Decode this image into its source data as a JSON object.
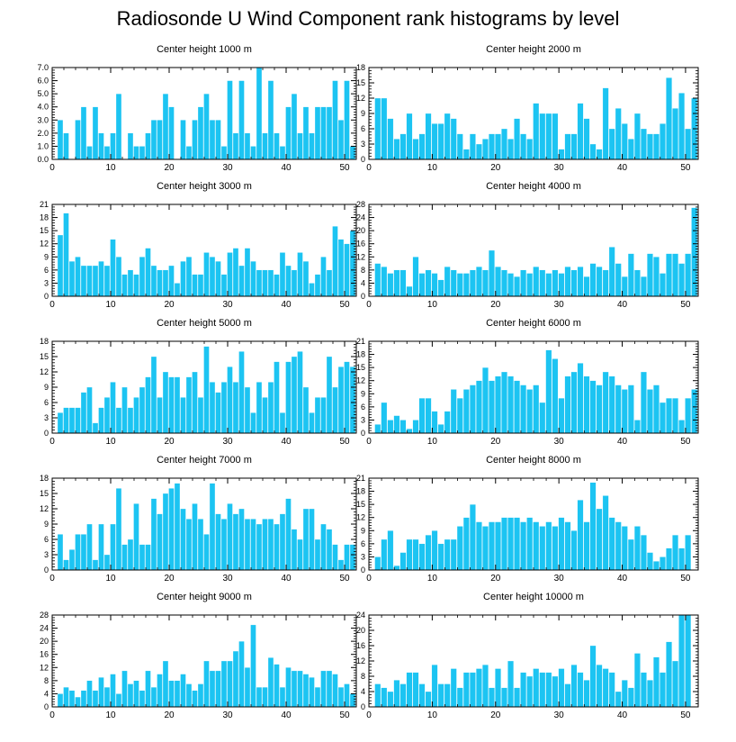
{
  "page_title": "Radiosonde U Wind Component rank histograms by level",
  "colors": {
    "bar": "#1cc4f2",
    "bar_stroke": "#ffffff",
    "axis": "#000000"
  },
  "chart_data": [
    {
      "type": "bar",
      "title": "Center height 1000 m",
      "xlim": [
        0,
        52
      ],
      "ylim": [
        0,
        7
      ],
      "xticks": [
        0,
        10,
        20,
        30,
        40,
        50
      ],
      "yticks": [
        "0.0",
        "1.0",
        "2.0",
        "3.0",
        "4.0",
        "5.0",
        "6.0",
        "7.0"
      ],
      "ytick_values": [
        0,
        1,
        2,
        3,
        4,
        5,
        6,
        7
      ],
      "values": [
        0,
        3,
        2,
        0,
        3,
        4,
        1,
        4,
        2,
        1,
        2,
        5,
        0,
        2,
        1,
        1,
        2,
        3,
        3,
        5,
        4,
        0,
        3,
        1,
        3,
        4,
        5,
        3,
        3,
        1,
        6,
        2,
        6,
        2,
        1,
        7,
        2,
        6,
        2,
        1,
        4,
        5,
        2,
        4,
        2,
        4,
        4,
        4,
        6,
        3,
        6,
        1
      ]
    },
    {
      "type": "bar",
      "title": "Center height 2000 m",
      "xlim": [
        0,
        52
      ],
      "ylim": [
        0,
        18
      ],
      "xticks": [
        0,
        10,
        20,
        30,
        40,
        50
      ],
      "yticks": [
        "0",
        "3",
        "6",
        "9",
        "12",
        "15",
        "18"
      ],
      "ytick_values": [
        0,
        3,
        6,
        9,
        12,
        15,
        18
      ],
      "values": [
        0,
        12,
        12,
        8,
        4,
        5,
        9,
        4,
        5,
        9,
        7,
        7,
        9,
        8,
        5,
        2,
        5,
        3,
        4,
        5,
        5,
        6,
        4,
        8,
        5,
        4,
        11,
        9,
        9,
        9,
        2,
        5,
        5,
        11,
        8,
        3,
        2,
        14,
        6,
        10,
        7,
        4,
        9,
        6,
        5,
        5,
        7,
        16,
        10,
        13,
        6,
        12
      ]
    },
    {
      "type": "bar",
      "title": "Center height 3000 m",
      "xlim": [
        0,
        52
      ],
      "ylim": [
        0,
        21
      ],
      "xticks": [
        0,
        10,
        20,
        30,
        40,
        50
      ],
      "yticks": [
        "0",
        "3",
        "6",
        "9",
        "12",
        "15",
        "18",
        "21"
      ],
      "ytick_values": [
        0,
        3,
        6,
        9,
        12,
        15,
        18,
        21
      ],
      "values": [
        0,
        14,
        19,
        8,
        9,
        7,
        7,
        7,
        8,
        7,
        13,
        9,
        5,
        6,
        5,
        9,
        11,
        7,
        6,
        6,
        7,
        3,
        8,
        9,
        5,
        5,
        10,
        9,
        8,
        5,
        10,
        11,
        7,
        11,
        8,
        6,
        6,
        6,
        5,
        10,
        7,
        6,
        10,
        8,
        3,
        5,
        9,
        6,
        16,
        13,
        12,
        15
      ]
    },
    {
      "type": "bar",
      "title": "Center height 4000 m",
      "xlim": [
        0,
        52
      ],
      "ylim": [
        0,
        28
      ],
      "xticks": [
        0,
        10,
        20,
        30,
        40,
        50
      ],
      "yticks": [
        "0",
        "4",
        "8",
        "12",
        "16",
        "20",
        "24",
        "28"
      ],
      "ytick_values": [
        0,
        4,
        8,
        12,
        16,
        20,
        24,
        28
      ],
      "values": [
        0,
        10,
        9,
        7,
        8,
        8,
        3,
        12,
        7,
        8,
        7,
        5,
        9,
        8,
        7,
        7,
        8,
        9,
        8,
        14,
        9,
        8,
        7,
        6,
        8,
        7,
        9,
        8,
        7,
        8,
        7,
        9,
        8,
        9,
        6,
        10,
        9,
        8,
        15,
        10,
        6,
        13,
        8,
        6,
        13,
        12,
        7,
        13,
        13,
        10,
        13,
        27
      ]
    },
    {
      "type": "bar",
      "title": "Center height 5000 m",
      "xlim": [
        0,
        52
      ],
      "ylim": [
        0,
        18
      ],
      "xticks": [
        0,
        10,
        20,
        30,
        40,
        50
      ],
      "yticks": [
        "0",
        "3",
        "6",
        "9",
        "12",
        "15",
        "18"
      ],
      "ytick_values": [
        0,
        3,
        6,
        9,
        12,
        15,
        18
      ],
      "values": [
        0,
        4,
        5,
        5,
        5,
        8,
        9,
        2,
        5,
        7,
        10,
        5,
        9,
        5,
        7,
        9,
        11,
        15,
        7,
        12,
        11,
        11,
        7,
        11,
        12,
        7,
        17,
        10,
        8,
        10,
        13,
        10,
        16,
        9,
        4,
        10,
        7,
        10,
        14,
        4,
        14,
        15,
        16,
        9,
        4,
        7,
        7,
        15,
        9,
        13,
        14,
        13
      ]
    },
    {
      "type": "bar",
      "title": "Center height 6000 m",
      "xlim": [
        0,
        52
      ],
      "ylim": [
        0,
        21
      ],
      "xticks": [
        0,
        10,
        20,
        30,
        40,
        50
      ],
      "yticks": [
        "0",
        "3",
        "6",
        "9",
        "12",
        "15",
        "18",
        "21"
      ],
      "ytick_values": [
        0,
        3,
        6,
        9,
        12,
        15,
        18,
        21
      ],
      "values": [
        0,
        2,
        7,
        3,
        4,
        3,
        1,
        3,
        8,
        8,
        5,
        2,
        5,
        10,
        8,
        10,
        11,
        12,
        15,
        12,
        13,
        14,
        13,
        12,
        11,
        10,
        11,
        7,
        19,
        17,
        8,
        13,
        14,
        16,
        13,
        12,
        11,
        14,
        13,
        11,
        10,
        11,
        3,
        14,
        10,
        11,
        7,
        8,
        8,
        3,
        8,
        10
      ]
    },
    {
      "type": "bar",
      "title": "Center height 7000 m",
      "xlim": [
        0,
        52
      ],
      "ylim": [
        0,
        18
      ],
      "xticks": [
        0,
        10,
        20,
        30,
        40,
        50
      ],
      "yticks": [
        "0",
        "3",
        "6",
        "9",
        "12",
        "15",
        "18"
      ],
      "ytick_values": [
        0,
        3,
        6,
        9,
        12,
        15,
        18
      ],
      "values": [
        0,
        7,
        2,
        4,
        7,
        7,
        9,
        2,
        9,
        3,
        9,
        16,
        5,
        6,
        13,
        5,
        5,
        14,
        11,
        15,
        16,
        17,
        12,
        10,
        13,
        10,
        7,
        17,
        11,
        10,
        13,
        11,
        12,
        10,
        10,
        9,
        10,
        10,
        9,
        11,
        14,
        8,
        6,
        12,
        12,
        6,
        9,
        8,
        5,
        2,
        5,
        5
      ]
    },
    {
      "type": "bar",
      "title": "Center height 8000 m",
      "xlim": [
        0,
        52
      ],
      "ylim": [
        0,
        21
      ],
      "xticks": [
        0,
        10,
        20,
        30,
        40,
        50
      ],
      "yticks": [
        "0",
        "3",
        "6",
        "9",
        "12",
        "15",
        "18",
        "21"
      ],
      "ytick_values": [
        0,
        3,
        6,
        9,
        12,
        15,
        18,
        21
      ],
      "values": [
        0,
        3,
        7,
        9,
        1,
        4,
        7,
        7,
        6,
        8,
        9,
        6,
        7,
        7,
        10,
        12,
        15,
        11,
        10,
        11,
        11,
        12,
        12,
        12,
        11,
        12,
        11,
        10,
        11,
        10,
        12,
        11,
        9,
        16,
        11,
        20,
        14,
        17,
        12,
        11,
        10,
        7,
        10,
        8,
        4,
        2,
        3,
        5,
        8,
        5,
        8,
        0
      ]
    },
    {
      "type": "bar",
      "title": "Center height 9000 m",
      "xlim": [
        0,
        52
      ],
      "ylim": [
        0,
        28
      ],
      "xticks": [
        0,
        10,
        20,
        30,
        40,
        50
      ],
      "yticks": [
        "0",
        "4",
        "8",
        "12",
        "16",
        "20",
        "24",
        "28"
      ],
      "ytick_values": [
        0,
        4,
        8,
        12,
        16,
        20,
        24,
        28
      ],
      "values": [
        0,
        4,
        6,
        5,
        3,
        5,
        8,
        5,
        9,
        6,
        10,
        4,
        11,
        7,
        8,
        5,
        11,
        6,
        10,
        14,
        8,
        8,
        10,
        7,
        5,
        7,
        14,
        11,
        11,
        14,
        14,
        17,
        20,
        12,
        25,
        6,
        6,
        15,
        13,
        6,
        12,
        11,
        11,
        10,
        9,
        6,
        11,
        11,
        10,
        6,
        7,
        4
      ]
    },
    {
      "type": "bar",
      "title": "Center height 10000 m",
      "xlim": [
        0,
        52
      ],
      "ylim": [
        0,
        24
      ],
      "xticks": [
        0,
        10,
        20,
        30,
        40,
        50
      ],
      "yticks": [
        "0",
        "4",
        "8",
        "12",
        "16",
        "20",
        "24"
      ],
      "ytick_values": [
        0,
        4,
        8,
        12,
        16,
        20,
        24
      ],
      "values": [
        0,
        6,
        5,
        4,
        7,
        6,
        9,
        9,
        6,
        4,
        11,
        6,
        6,
        10,
        5,
        9,
        9,
        10,
        11,
        5,
        10,
        5,
        12,
        5,
        9,
        8,
        10,
        9,
        9,
        8,
        10,
        6,
        11,
        9,
        7,
        16,
        11,
        10,
        9,
        4,
        7,
        5,
        14,
        9,
        7,
        13,
        9,
        17,
        12,
        24,
        24,
        0
      ]
    }
  ]
}
